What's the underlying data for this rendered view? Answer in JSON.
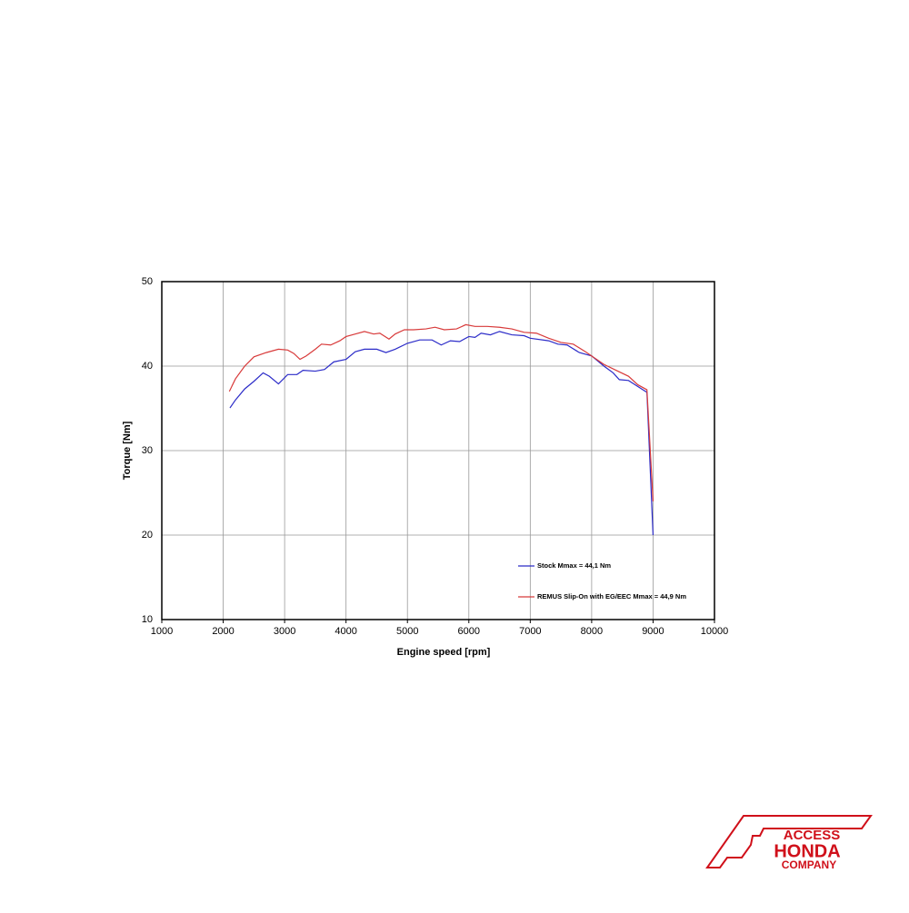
{
  "chart_data": {
    "type": "line",
    "xlabel": "Engine speed [rpm]",
    "ylabel": "Torque [Nm]",
    "xlim": [
      1000,
      10000
    ],
    "xticks": [
      1000,
      2000,
      3000,
      4000,
      5000,
      6000,
      7000,
      8000,
      9000,
      10000
    ],
    "ylim": [
      10,
      50
    ],
    "yticks": [
      10,
      20,
      30,
      40,
      50
    ],
    "grid": true,
    "series": [
      {
        "name": "Stock Mmax = 44,1 Nm",
        "color": "#2b2bc8",
        "x": [
          2110,
          2200,
          2350,
          2500,
          2650,
          2750,
          2900,
          3050,
          3200,
          3300,
          3500,
          3650,
          3800,
          4000,
          4150,
          4300,
          4500,
          4650,
          4800,
          5000,
          5200,
          5400,
          5550,
          5700,
          5850,
          6000,
          6100,
          6200,
          6350,
          6500,
          6700,
          6900,
          7000,
          7300,
          7450,
          7600,
          7800,
          8000,
          8200,
          8350,
          8450,
          8600,
          8750,
          8900,
          9000
        ],
        "values": [
          35.05,
          36.0,
          37.3,
          38.2,
          39.2,
          38.8,
          37.9,
          39.0,
          39.0,
          39.5,
          39.4,
          39.6,
          40.5,
          40.8,
          41.7,
          42.0,
          42.0,
          41.6,
          42.0,
          42.7,
          43.1,
          43.1,
          42.5,
          43.0,
          42.9,
          43.5,
          43.4,
          43.9,
          43.7,
          44.1,
          43.7,
          43.6,
          43.3,
          43.0,
          42.6,
          42.5,
          41.6,
          41.2,
          40.0,
          39.2,
          38.4,
          38.3,
          37.6,
          36.9,
          20.0
        ]
      },
      {
        "name": "REMUS Slip-On with EG/EEC Mmax = 44,9 Nm",
        "color": "#d83a3a",
        "x": [
          2100,
          2200,
          2350,
          2500,
          2700,
          2900,
          3050,
          3150,
          3250,
          3350,
          3500,
          3600,
          3750,
          3900,
          4000,
          4150,
          4300,
          4450,
          4550,
          4700,
          4800,
          4950,
          5100,
          5300,
          5450,
          5600,
          5800,
          5950,
          6100,
          6300,
          6500,
          6700,
          6900,
          7100,
          7300,
          7500,
          7700,
          7900,
          8000,
          8200,
          8400,
          8600,
          8750,
          8900,
          9000
        ],
        "values": [
          37.0,
          38.5,
          40.0,
          41.1,
          41.6,
          42.0,
          41.9,
          41.5,
          40.8,
          41.2,
          42.0,
          42.6,
          42.5,
          43.0,
          43.5,
          43.8,
          44.1,
          43.8,
          43.9,
          43.2,
          43.8,
          44.3,
          44.3,
          44.4,
          44.6,
          44.3,
          44.4,
          44.9,
          44.7,
          44.7,
          44.6,
          44.4,
          44.0,
          43.9,
          43.3,
          42.8,
          42.6,
          41.7,
          41.2,
          40.2,
          39.5,
          38.8,
          37.8,
          37.2,
          24.0
        ]
      }
    ]
  },
  "logo": {
    "line1": "ACCESS",
    "line2": "HONDA",
    "line3": "COMPANY"
  }
}
